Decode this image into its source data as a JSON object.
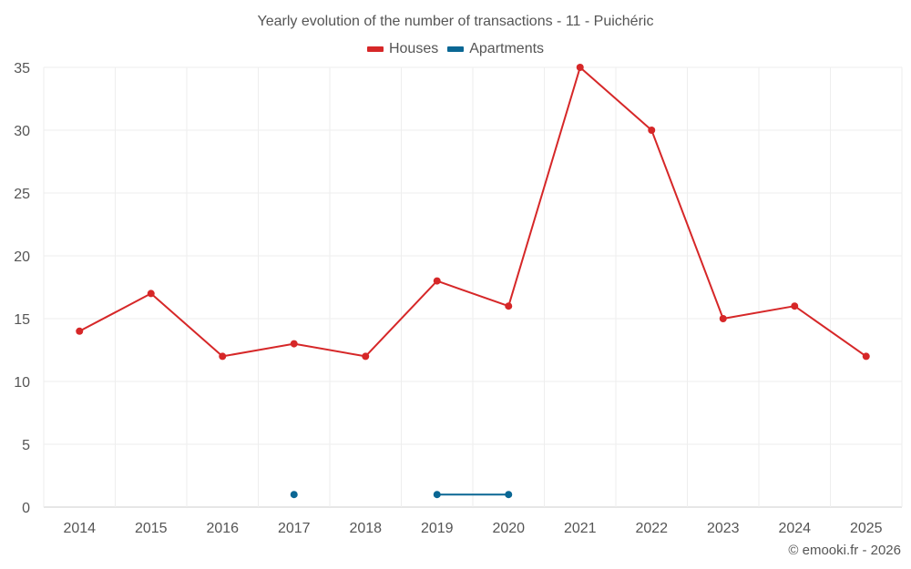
{
  "chart_data": {
    "type": "line",
    "title": "Yearly evolution of the number of transactions - 11 - Puichéric",
    "categories": [
      "2014",
      "2015",
      "2016",
      "2017",
      "2018",
      "2019",
      "2020",
      "2021",
      "2022",
      "2023",
      "2024",
      "2025"
    ],
    "series": [
      {
        "name": "Houses",
        "color": "#d62728",
        "values": [
          14,
          17,
          12,
          13,
          12,
          18,
          16,
          35,
          30,
          15,
          16,
          12
        ]
      },
      {
        "name": "Apartments",
        "color": "#0a6794",
        "values": [
          null,
          null,
          null,
          1,
          null,
          1,
          1,
          null,
          null,
          null,
          null,
          null
        ]
      }
    ],
    "ylim": [
      0,
      35
    ],
    "yticks": [
      0,
      5,
      10,
      15,
      20,
      25,
      30,
      35
    ],
    "xlabel": "",
    "ylabel": "",
    "legend_position": "top-center",
    "grid": true
  },
  "credit": "© emooki.fr - 2026"
}
